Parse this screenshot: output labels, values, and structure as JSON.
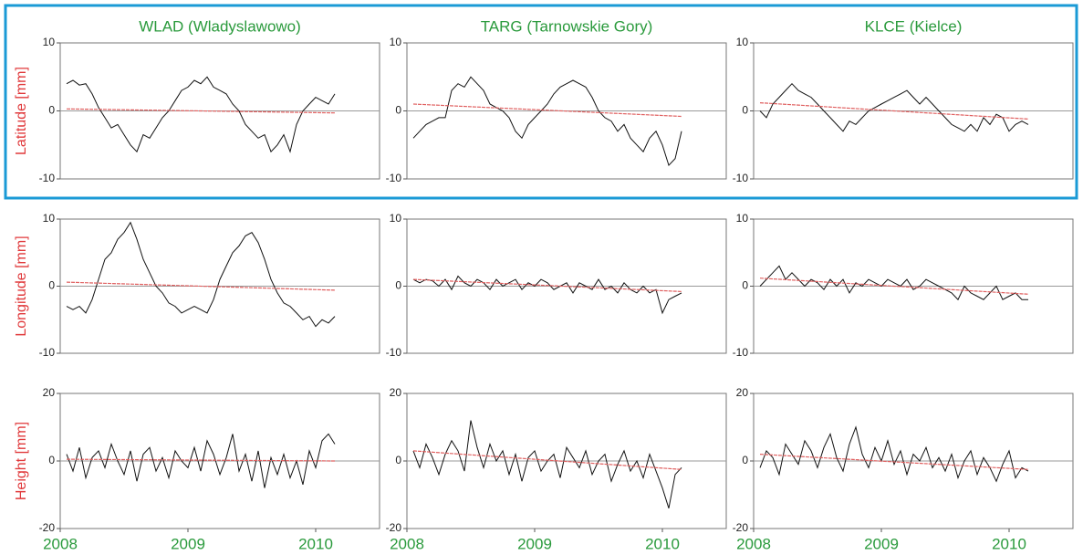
{
  "chart_data": [
    {
      "type": "line",
      "title": "WLAD (Wladyslawowo)",
      "ylabel": "Latitude [mm]",
      "xlim": [
        2008,
        2010.5
      ],
      "ylim": [
        -10,
        10
      ],
      "yticks": [
        -10,
        0,
        10
      ],
      "zero_line": true,
      "x": [
        2008.05,
        2008.1,
        2008.15,
        2008.2,
        2008.25,
        2008.3,
        2008.35,
        2008.4,
        2008.45,
        2008.5,
        2008.55,
        2008.6,
        2008.65,
        2008.7,
        2008.75,
        2008.8,
        2008.85,
        2008.9,
        2008.95,
        2009,
        2009.05,
        2009.1,
        2009.15,
        2009.2,
        2009.25,
        2009.3,
        2009.35,
        2009.4,
        2009.45,
        2009.5,
        2009.55,
        2009.6,
        2009.65,
        2009.7,
        2009.75,
        2009.8,
        2009.85,
        2009.9,
        2009.95,
        2010,
        2010.05,
        2010.1,
        2010.15
      ],
      "series": [
        {
          "color": "#111111",
          "values": [
            4,
            4.5,
            3.8,
            4,
            2.5,
            0.5,
            -1,
            -2.5,
            -2,
            -3.5,
            -5,
            -6,
            -3.5,
            -4,
            -2.5,
            -1,
            0,
            1.5,
            3,
            3.5,
            4.5,
            4,
            5,
            3.5,
            3,
            2.5,
            1,
            0,
            -2,
            -3,
            -4,
            -3.5,
            -6,
            -5,
            -3.5,
            -6,
            -2,
            0,
            1,
            2,
            1.5,
            1,
            2.5
          ]
        },
        {
          "color": "#e06060",
          "x": [
            2008.05,
            2010.15
          ],
          "values": [
            0.3,
            -0.3
          ]
        }
      ]
    },
    {
      "type": "line",
      "title": "TARG (Tarnowskie Gory)",
      "xlim": [
        2008,
        2010.5
      ],
      "ylim": [
        -10,
        10
      ],
      "yticks": [
        -10,
        0,
        10
      ],
      "zero_line": true,
      "x": [
        2008.05,
        2008.1,
        2008.15,
        2008.2,
        2008.25,
        2008.3,
        2008.35,
        2008.4,
        2008.45,
        2008.5,
        2008.55,
        2008.6,
        2008.65,
        2008.7,
        2008.75,
        2008.8,
        2008.85,
        2008.9,
        2008.95,
        2009,
        2009.05,
        2009.1,
        2009.15,
        2009.2,
        2009.25,
        2009.3,
        2009.35,
        2009.4,
        2009.45,
        2009.5,
        2009.55,
        2009.6,
        2009.65,
        2009.7,
        2009.75,
        2009.8,
        2009.85,
        2009.9,
        2009.95,
        2010,
        2010.05,
        2010.1,
        2010.15
      ],
      "series": [
        {
          "color": "#111111",
          "values": [
            -4,
            -3,
            -2,
            -1.5,
            -1,
            -1,
            3,
            4,
            3.5,
            5,
            4,
            3,
            1,
            0.5,
            0,
            -1,
            -3,
            -4,
            -2,
            -1,
            0,
            1,
            2.5,
            3.5,
            4,
            4.5,
            4,
            3.5,
            2,
            0,
            -1,
            -1.5,
            -3,
            -2,
            -4,
            -5,
            -6,
            -4,
            -3,
            -5,
            -8,
            -7,
            -3
          ]
        },
        {
          "color": "#e06060",
          "x": [
            2008.05,
            2010.15
          ],
          "values": [
            1,
            -0.8
          ]
        }
      ]
    },
    {
      "type": "line",
      "title": "KLCE (Kielce)",
      "xlim": [
        2008,
        2010.5
      ],
      "ylim": [
        -10,
        10
      ],
      "yticks": [
        -10,
        0,
        10
      ],
      "zero_line": true,
      "x": [
        2008.05,
        2008.1,
        2008.15,
        2008.2,
        2008.25,
        2008.3,
        2008.35,
        2008.4,
        2008.45,
        2008.5,
        2008.55,
        2008.6,
        2008.65,
        2008.7,
        2008.75,
        2008.8,
        2008.85,
        2008.9,
        2008.95,
        2009,
        2009.05,
        2009.1,
        2009.15,
        2009.2,
        2009.25,
        2009.3,
        2009.35,
        2009.4,
        2009.45,
        2009.5,
        2009.55,
        2009.6,
        2009.65,
        2009.7,
        2009.75,
        2009.8,
        2009.85,
        2009.9,
        2009.95,
        2010,
        2010.05,
        2010.1,
        2010.15
      ],
      "series": [
        {
          "color": "#111111",
          "values": [
            0,
            -1,
            1,
            2,
            3,
            4,
            3,
            2.5,
            2,
            1,
            0,
            -1,
            -2,
            -3,
            -1.5,
            -2,
            -1,
            0,
            0.5,
            1,
            1.5,
            2,
            2.5,
            3,
            2,
            1,
            2,
            1,
            0,
            -1,
            -2,
            -2.5,
            -3,
            -2,
            -3,
            -1,
            -2,
            -0.5,
            -1,
            -3,
            -2,
            -1.5,
            -2
          ]
        },
        {
          "color": "#e06060",
          "x": [
            2008.05,
            2010.15
          ],
          "values": [
            1.2,
            -1.2
          ]
        }
      ]
    },
    {
      "type": "line",
      "ylabel": "Longitude [mm]",
      "xlim": [
        2008,
        2010.5
      ],
      "ylim": [
        -10,
        10
      ],
      "yticks": [
        -10,
        0,
        10
      ],
      "zero_line": true,
      "x": [
        2008.05,
        2008.1,
        2008.15,
        2008.2,
        2008.25,
        2008.3,
        2008.35,
        2008.4,
        2008.45,
        2008.5,
        2008.55,
        2008.6,
        2008.65,
        2008.7,
        2008.75,
        2008.8,
        2008.85,
        2008.9,
        2008.95,
        2009,
        2009.05,
        2009.1,
        2009.15,
        2009.2,
        2009.25,
        2009.3,
        2009.35,
        2009.4,
        2009.45,
        2009.5,
        2009.55,
        2009.6,
        2009.65,
        2009.7,
        2009.75,
        2009.8,
        2009.85,
        2009.9,
        2009.95,
        2010,
        2010.05,
        2010.1,
        2010.15
      ],
      "series": [
        {
          "color": "#111111",
          "values": [
            -3,
            -3.5,
            -3,
            -4,
            -2,
            1,
            4,
            5,
            7,
            8,
            9.5,
            7,
            4,
            2,
            0,
            -1,
            -2.5,
            -3,
            -4,
            -3.5,
            -3,
            -3.5,
            -4,
            -2,
            1,
            3,
            5,
            6,
            7.5,
            8,
            6.5,
            4,
            1,
            -1,
            -2.5,
            -3,
            -4,
            -5,
            -4.5,
            -6,
            -5,
            -5.5,
            -4.5
          ]
        },
        {
          "color": "#e06060",
          "x": [
            2008.05,
            2010.15
          ],
          "values": [
            0.6,
            -0.6
          ]
        }
      ]
    },
    {
      "type": "line",
      "xlim": [
        2008,
        2010.5
      ],
      "ylim": [
        -10,
        10
      ],
      "yticks": [
        -10,
        0,
        10
      ],
      "zero_line": true,
      "x": [
        2008.05,
        2008.1,
        2008.15,
        2008.2,
        2008.25,
        2008.3,
        2008.35,
        2008.4,
        2008.45,
        2008.5,
        2008.55,
        2008.6,
        2008.65,
        2008.7,
        2008.75,
        2008.8,
        2008.85,
        2008.9,
        2008.95,
        2009,
        2009.05,
        2009.1,
        2009.15,
        2009.2,
        2009.25,
        2009.3,
        2009.35,
        2009.4,
        2009.45,
        2009.5,
        2009.55,
        2009.6,
        2009.65,
        2009.7,
        2009.75,
        2009.8,
        2009.85,
        2009.9,
        2009.95,
        2010,
        2010.05,
        2010.1,
        2010.15
      ],
      "series": [
        {
          "color": "#111111",
          "values": [
            1,
            0.5,
            1,
            0.8,
            0,
            1,
            -0.5,
            1.5,
            0.5,
            0,
            1,
            0.5,
            -0.5,
            1,
            0,
            0.5,
            1,
            -0.5,
            0.5,
            0,
            1,
            0.5,
            -0.5,
            0,
            0.5,
            -1,
            0.5,
            0,
            -0.5,
            1,
            -0.5,
            0,
            -1,
            0.5,
            -0.5,
            -1,
            0,
            -1,
            -0.5,
            -4,
            -2,
            -1.5,
            -1
          ]
        },
        {
          "color": "#e06060",
          "x": [
            2008.05,
            2010.15
          ],
          "values": [
            1,
            -0.8
          ]
        }
      ]
    },
    {
      "type": "line",
      "xlim": [
        2008,
        2010.5
      ],
      "ylim": [
        -10,
        10
      ],
      "yticks": [
        -10,
        0,
        10
      ],
      "zero_line": true,
      "x": [
        2008.05,
        2008.1,
        2008.15,
        2008.2,
        2008.25,
        2008.3,
        2008.35,
        2008.4,
        2008.45,
        2008.5,
        2008.55,
        2008.6,
        2008.65,
        2008.7,
        2008.75,
        2008.8,
        2008.85,
        2008.9,
        2008.95,
        2009,
        2009.05,
        2009.1,
        2009.15,
        2009.2,
        2009.25,
        2009.3,
        2009.35,
        2009.4,
        2009.45,
        2009.5,
        2009.55,
        2009.6,
        2009.65,
        2009.7,
        2009.75,
        2009.8,
        2009.85,
        2009.9,
        2009.95,
        2010,
        2010.05,
        2010.1,
        2010.15
      ],
      "series": [
        {
          "color": "#111111",
          "values": [
            0,
            1,
            2,
            3,
            1,
            2,
            1,
            0,
            1,
            0.5,
            -0.5,
            1,
            0,
            1,
            -1,
            0.5,
            0,
            1,
            0.5,
            0,
            1,
            0.5,
            0,
            1,
            -0.5,
            0,
            1,
            0.5,
            0,
            -0.5,
            -1,
            -2,
            0,
            -1,
            -1.5,
            -2,
            -1,
            0,
            -2,
            -1.5,
            -1,
            -2,
            -2
          ]
        },
        {
          "color": "#e06060",
          "x": [
            2008.05,
            2010.15
          ],
          "values": [
            1.2,
            -1.2
          ]
        }
      ]
    },
    {
      "type": "line",
      "ylabel": "Height [mm]",
      "xlim": [
        2008,
        2010.5
      ],
      "ylim": [
        -20,
        20
      ],
      "yticks": [
        -20,
        0,
        20
      ],
      "xticks": [
        2008,
        2009,
        2010
      ],
      "zero_line": true,
      "x": [
        2008.05,
        2008.1,
        2008.15,
        2008.2,
        2008.25,
        2008.3,
        2008.35,
        2008.4,
        2008.45,
        2008.5,
        2008.55,
        2008.6,
        2008.65,
        2008.7,
        2008.75,
        2008.8,
        2008.85,
        2008.9,
        2008.95,
        2009,
        2009.05,
        2009.1,
        2009.15,
        2009.2,
        2009.25,
        2009.3,
        2009.35,
        2009.4,
        2009.45,
        2009.5,
        2009.55,
        2009.6,
        2009.65,
        2009.7,
        2009.75,
        2009.8,
        2009.85,
        2009.9,
        2009.95,
        2010,
        2010.05,
        2010.1,
        2010.15
      ],
      "series": [
        {
          "color": "#111111",
          "values": [
            2,
            -3,
            4,
            -5,
            1,
            3,
            -2,
            5,
            0,
            -4,
            3,
            -6,
            2,
            4,
            -3,
            1,
            -5,
            3,
            0,
            -2,
            4,
            -3,
            6,
            2,
            -4,
            1,
            8,
            -3,
            2,
            -6,
            3,
            -8,
            1,
            -4,
            2,
            -5,
            0,
            -7,
            3,
            -2,
            6,
            8,
            5
          ]
        },
        {
          "color": "#e06060",
          "x": [
            2008.05,
            2010.15
          ],
          "values": [
            0.5,
            0
          ]
        }
      ]
    },
    {
      "type": "line",
      "xlim": [
        2008,
        2010.5
      ],
      "ylim": [
        -20,
        20
      ],
      "yticks": [
        -20,
        0,
        20
      ],
      "xticks": [
        2008,
        2009,
        2010
      ],
      "zero_line": true,
      "x": [
        2008.05,
        2008.1,
        2008.15,
        2008.2,
        2008.25,
        2008.3,
        2008.35,
        2008.4,
        2008.45,
        2008.5,
        2008.55,
        2008.6,
        2008.65,
        2008.7,
        2008.75,
        2008.8,
        2008.85,
        2008.9,
        2008.95,
        2009,
        2009.05,
        2009.1,
        2009.15,
        2009.2,
        2009.25,
        2009.3,
        2009.35,
        2009.4,
        2009.45,
        2009.5,
        2009.55,
        2009.6,
        2009.65,
        2009.7,
        2009.75,
        2009.8,
        2009.85,
        2009.9,
        2009.95,
        2010,
        2010.05,
        2010.1,
        2010.15
      ],
      "series": [
        {
          "color": "#111111",
          "values": [
            3,
            -2,
            5,
            1,
            -4,
            2,
            6,
            3,
            -3,
            12,
            4,
            -2,
            5,
            0,
            3,
            -4,
            2,
            -6,
            1,
            3,
            -3,
            0,
            2,
            -5,
            4,
            1,
            -2,
            3,
            -4,
            0,
            2,
            -6,
            -1,
            3,
            -3,
            0,
            -5,
            2,
            -3,
            -8,
            -14,
            -4,
            -2
          ]
        },
        {
          "color": "#e06060",
          "x": [
            2008.05,
            2010.15
          ],
          "values": [
            3,
            -2.5
          ]
        }
      ]
    },
    {
      "type": "line",
      "xlim": [
        2008,
        2010.5
      ],
      "ylim": [
        -20,
        20
      ],
      "yticks": [
        -20,
        0,
        20
      ],
      "xticks": [
        2008,
        2009,
        2010
      ],
      "zero_line": true,
      "x": [
        2008.05,
        2008.1,
        2008.15,
        2008.2,
        2008.25,
        2008.3,
        2008.35,
        2008.4,
        2008.45,
        2008.5,
        2008.55,
        2008.6,
        2008.65,
        2008.7,
        2008.75,
        2008.8,
        2008.85,
        2008.9,
        2008.95,
        2009,
        2009.05,
        2009.1,
        2009.15,
        2009.2,
        2009.25,
        2009.3,
        2009.35,
        2009.4,
        2009.45,
        2009.5,
        2009.55,
        2009.6,
        2009.65,
        2009.7,
        2009.75,
        2009.8,
        2009.85,
        2009.9,
        2009.95,
        2010,
        2010.05,
        2010.1,
        2010.15
      ],
      "series": [
        {
          "color": "#111111",
          "values": [
            -2,
            3,
            1,
            -4,
            5,
            2,
            -1,
            6,
            3,
            -2,
            4,
            8,
            1,
            -3,
            5,
            10,
            2,
            -2,
            4,
            0,
            6,
            -1,
            3,
            -4,
            2,
            0,
            4,
            -2,
            1,
            -3,
            2,
            -5,
            0,
            3,
            -4,
            1,
            -2,
            -6,
            -1,
            3,
            -5,
            -2,
            -3
          ]
        },
        {
          "color": "#e06060",
          "x": [
            2008.05,
            2010.15
          ],
          "values": [
            2,
            -2.5
          ]
        }
      ]
    }
  ]
}
